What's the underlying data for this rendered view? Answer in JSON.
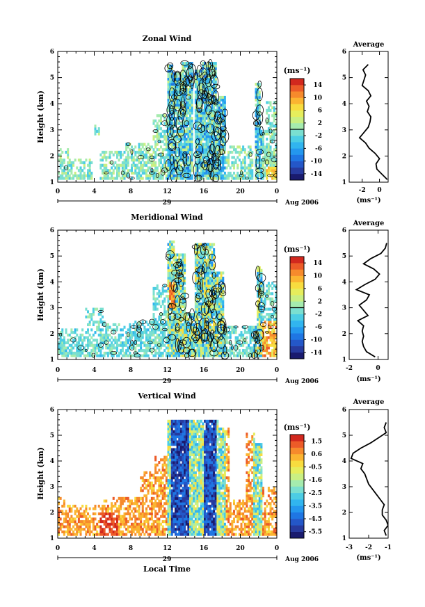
{
  "page": {
    "background": "#ffffff"
  },
  "chart_data": [
    {
      "type": "heatmap",
      "title": "Zonal Wind",
      "ylabel": "Height (km)",
      "ylim": [
        1,
        6
      ],
      "yticks": [
        "1",
        "2",
        "3",
        "4",
        "5",
        "6"
      ],
      "xlim": [
        0,
        24
      ],
      "xticks": [
        "0",
        "4",
        "8",
        "12",
        "16",
        "20",
        "0"
      ],
      "date_label": "29",
      "month_label": "Aug 2006",
      "colorbar": {
        "unit": "(ms⁻¹)",
        "range": [
          -15,
          15
        ],
        "ticks": [
          "14",
          "10",
          "6",
          "2",
          "-2",
          "-6",
          "-10",
          "-14"
        ],
        "contour_level": 0,
        "colors": [
          "#1a1b6e",
          "#273a9e",
          "#2457c8",
          "#1f76e3",
          "#2497ee",
          "#31b5ef",
          "#4ccde4",
          "#7adfd0",
          "#a5ebae",
          "#c9ef83",
          "#e6ed5c",
          "#f8dc3f",
          "#fbb431",
          "#f68a2c",
          "#ec5b28",
          "#d2281e"
        ]
      },
      "active_columns": [
        {
          "x": [
            0,
            1.2
          ],
          "h": [
            1.1,
            2.3
          ]
        },
        {
          "x": [
            1.2,
            3.8
          ],
          "h": [
            1.1,
            1.9
          ]
        },
        {
          "x": [
            4.0,
            4.6
          ],
          "h": [
            2.8,
            3.2
          ]
        },
        {
          "x": [
            4.6,
            7.3
          ],
          "h": [
            1.1,
            2.2
          ]
        },
        {
          "x": [
            7.3,
            10.2
          ],
          "h": [
            1.1,
            2.5
          ]
        },
        {
          "x": [
            10.3,
            11.8
          ],
          "h": [
            1.1,
            3.6
          ]
        },
        {
          "x": [
            11.9,
            12.5
          ],
          "h": [
            1.1,
            5.4
          ]
        },
        {
          "x": [
            12.5,
            13.5
          ],
          "h": [
            1.1,
            5.1
          ]
        },
        {
          "x": [
            13.5,
            14.6
          ],
          "h": [
            1.1,
            5.5
          ]
        },
        {
          "x": [
            14.9,
            15.7
          ],
          "h": [
            1.1,
            5.2
          ]
        },
        {
          "x": [
            15.7,
            17.2
          ],
          "h": [
            1.1,
            5.5
          ]
        },
        {
          "x": [
            17.2,
            18.2
          ],
          "h": [
            1.1,
            4.3
          ]
        },
        {
          "x": [
            18.3,
            21.3
          ],
          "h": [
            1.1,
            2.4
          ]
        },
        {
          "x": [
            21.4,
            22.0
          ],
          "h": [
            1.1,
            4.8
          ]
        },
        {
          "x": [
            22.0,
            22.6
          ],
          "h": [
            1.1,
            3.0
          ]
        },
        {
          "x": [
            22.6,
            23.8
          ],
          "h": [
            1.1,
            4.2
          ]
        }
      ],
      "profile": {
        "title": "Average",
        "xlabel": "(ms⁻¹)",
        "xlim": [
          -3.5,
          1.0
        ],
        "xticks": [
          "-2",
          "0"
        ],
        "xtick_values": [
          -2,
          0
        ],
        "ylim": [
          1,
          6
        ],
        "height": [
          1.1,
          1.3,
          1.5,
          1.7,
          1.9,
          2.1,
          2.3,
          2.5,
          2.7,
          2.9,
          3.1,
          3.3,
          3.5,
          3.7,
          3.9,
          4.1,
          4.3,
          4.5,
          4.7,
          4.9,
          5.1,
          5.3,
          5.5
        ],
        "value": [
          0.9,
          0.3,
          -0.3,
          -0.4,
          0.0,
          -0.5,
          -1.2,
          -1.6,
          -2.3,
          -1.8,
          -1.3,
          -1.1,
          -1.0,
          -1.4,
          -1.2,
          -1.5,
          -1.0,
          -1.3,
          -2.0,
          -1.8,
          -1.6,
          -1.9,
          -1.3
        ]
      }
    },
    {
      "type": "heatmap",
      "title": "Meridional Wind",
      "ylabel": "Height (km)",
      "ylim": [
        1,
        6
      ],
      "yticks": [
        "1",
        "2",
        "3",
        "4",
        "5",
        "6"
      ],
      "xlim": [
        0,
        24
      ],
      "xticks": [
        "0",
        "4",
        "8",
        "12",
        "16",
        "20",
        "0"
      ],
      "date_label": "29",
      "month_label": "Aug 2006",
      "colorbar": {
        "unit": "(ms⁻¹)",
        "range": [
          -15,
          15
        ],
        "ticks": [
          "14",
          "10",
          "6",
          "2",
          "-2",
          "-6",
          "-10",
          "-14"
        ],
        "contour_level": 0,
        "colors": [
          "#1a1b6e",
          "#273a9e",
          "#2457c8",
          "#1f76e3",
          "#2497ee",
          "#31b5ef",
          "#4ccde4",
          "#7adfd0",
          "#a5ebae",
          "#c9ef83",
          "#e6ed5c",
          "#f8dc3f",
          "#fbb431",
          "#f68a2c",
          "#ec5b28",
          "#d2281e"
        ]
      },
      "active_columns": [
        {
          "x": [
            0,
            3.0
          ],
          "h": [
            1.1,
            2.2
          ]
        },
        {
          "x": [
            3.0,
            5.2
          ],
          "h": [
            1.1,
            3.0
          ]
        },
        {
          "x": [
            5.2,
            7.8
          ],
          "h": [
            1.1,
            2.4
          ]
        },
        {
          "x": [
            7.8,
            10.2
          ],
          "h": [
            1.1,
            2.5
          ]
        },
        {
          "x": [
            10.2,
            11.8
          ],
          "h": [
            1.1,
            3.9
          ]
        },
        {
          "x": [
            11.9,
            12.6
          ],
          "h": [
            1.1,
            5.5
          ]
        },
        {
          "x": [
            12.6,
            13.8
          ],
          "h": [
            1.1,
            5.0
          ]
        },
        {
          "x": [
            13.8,
            14.8
          ],
          "h": [
            1.1,
            2.8
          ]
        },
        {
          "x": [
            14.8,
            17.0
          ],
          "h": [
            1.1,
            5.4
          ]
        },
        {
          "x": [
            17.0,
            18.0
          ],
          "h": [
            1.1,
            4.4
          ]
        },
        {
          "x": [
            18.0,
            21.6
          ],
          "h": [
            1.1,
            2.3
          ]
        },
        {
          "x": [
            21.6,
            22.2
          ],
          "h": [
            1.1,
            4.6
          ]
        },
        {
          "x": [
            22.2,
            23.9
          ],
          "h": [
            1.1,
            4.0
          ]
        }
      ],
      "profile": {
        "title": "Average",
        "xlabel": "(ms⁻¹)",
        "xlim": [
          -2.0,
          0.7
        ],
        "xticks": [
          "-2",
          "0"
        ],
        "xtick_values": [
          -2,
          0
        ],
        "ylim": [
          1,
          6
        ],
        "height": [
          1.1,
          1.3,
          1.5,
          1.7,
          1.9,
          2.1,
          2.3,
          2.5,
          2.7,
          2.9,
          3.1,
          3.3,
          3.5,
          3.7,
          3.9,
          4.1,
          4.3,
          4.5,
          4.7,
          4.9,
          5.1,
          5.3,
          5.5
        ],
        "value": [
          -0.2,
          -0.8,
          -1.0,
          -1.1,
          -1.0,
          -1.1,
          -1.0,
          -1.4,
          -0.7,
          -1.0,
          -1.3,
          -0.8,
          -0.6,
          -1.5,
          -0.9,
          -0.2,
          0.1,
          -0.3,
          -1.0,
          -0.5,
          0.2,
          0.5,
          0.6
        ]
      }
    },
    {
      "type": "heatmap",
      "title": "Vertical Wind",
      "ylabel": "Height (km)",
      "xlabel": "Local Time",
      "ylim": [
        1,
        6
      ],
      "yticks": [
        "1",
        "2",
        "3",
        "4",
        "5",
        "6"
      ],
      "xlim": [
        0,
        24
      ],
      "xticks": [
        "0",
        "4",
        "8",
        "12",
        "16",
        "20",
        "0"
      ],
      "date_label": "29",
      "month_label": "Aug 2006",
      "colorbar": {
        "unit": "(ms⁻¹)",
        "range": [
          -6.0,
          2.0
        ],
        "ticks": [
          "1.5",
          "0.6",
          "-0.5",
          "-1.6",
          "-2.5",
          "-3.5",
          "-4.5",
          "-5.5"
        ],
        "colors": [
          "#1a1b6e",
          "#273a9e",
          "#2457c8",
          "#1f76e3",
          "#2497ee",
          "#31b5ef",
          "#4ccde4",
          "#7adfd0",
          "#a5ebae",
          "#c9ef83",
          "#e6ed5c",
          "#f8dc3f",
          "#fbb431",
          "#f68a2c",
          "#ec5b28",
          "#d2281e"
        ]
      },
      "active_columns": [
        {
          "x": [
            0,
            1.0
          ],
          "h": [
            1.1,
            2.6
          ]
        },
        {
          "x": [
            1.0,
            5.0
          ],
          "h": [
            1.1,
            2.3
          ]
        },
        {
          "x": [
            5.0,
            9.0
          ],
          "h": [
            1.1,
            2.6
          ]
        },
        {
          "x": [
            9.0,
            10.5
          ],
          "h": [
            1.1,
            3.6
          ]
        },
        {
          "x": [
            10.5,
            11.8
          ],
          "h": [
            1.1,
            4.2
          ]
        },
        {
          "x": [
            11.8,
            14.8
          ],
          "h": [
            1.1,
            5.5
          ]
        },
        {
          "x": [
            14.8,
            17.5
          ],
          "h": [
            1.1,
            5.5
          ]
        },
        {
          "x": [
            17.5,
            18.6
          ],
          "h": [
            1.1,
            5.2
          ]
        },
        {
          "x": [
            18.6,
            20.5
          ],
          "h": [
            1.1,
            2.5
          ]
        },
        {
          "x": [
            20.5,
            21.5
          ],
          "h": [
            1.1,
            5.0
          ]
        },
        {
          "x": [
            21.5,
            22.2
          ],
          "h": [
            1.1,
            4.7
          ]
        },
        {
          "x": [
            22.2,
            23.8
          ],
          "h": [
            1.1,
            3.0
          ]
        }
      ],
      "profile": {
        "title": "Average",
        "xlabel": "(ms⁻¹)",
        "xlim": [
          -3.0,
          -1.0
        ],
        "xticks": [
          "-3",
          "-2",
          "-1"
        ],
        "xtick_values": [
          -3,
          -2,
          -1
        ],
        "ylim": [
          1,
          6
        ],
        "height": [
          1.1,
          1.3,
          1.5,
          1.7,
          1.9,
          2.1,
          2.3,
          2.5,
          2.7,
          2.9,
          3.1,
          3.3,
          3.5,
          3.7,
          3.9,
          4.1,
          4.3,
          4.5,
          4.7,
          4.9,
          5.1,
          5.3,
          5.5
        ],
        "value": [
          -1.1,
          -1.2,
          -1.0,
          -1.1,
          -1.3,
          -1.3,
          -1.2,
          -1.4,
          -1.6,
          -1.8,
          -2.0,
          -2.1,
          -2.2,
          -2.4,
          -2.3,
          -2.9,
          -2.8,
          -2.4,
          -1.9,
          -1.5,
          -1.1,
          -1.2,
          -1.1
        ]
      }
    }
  ]
}
